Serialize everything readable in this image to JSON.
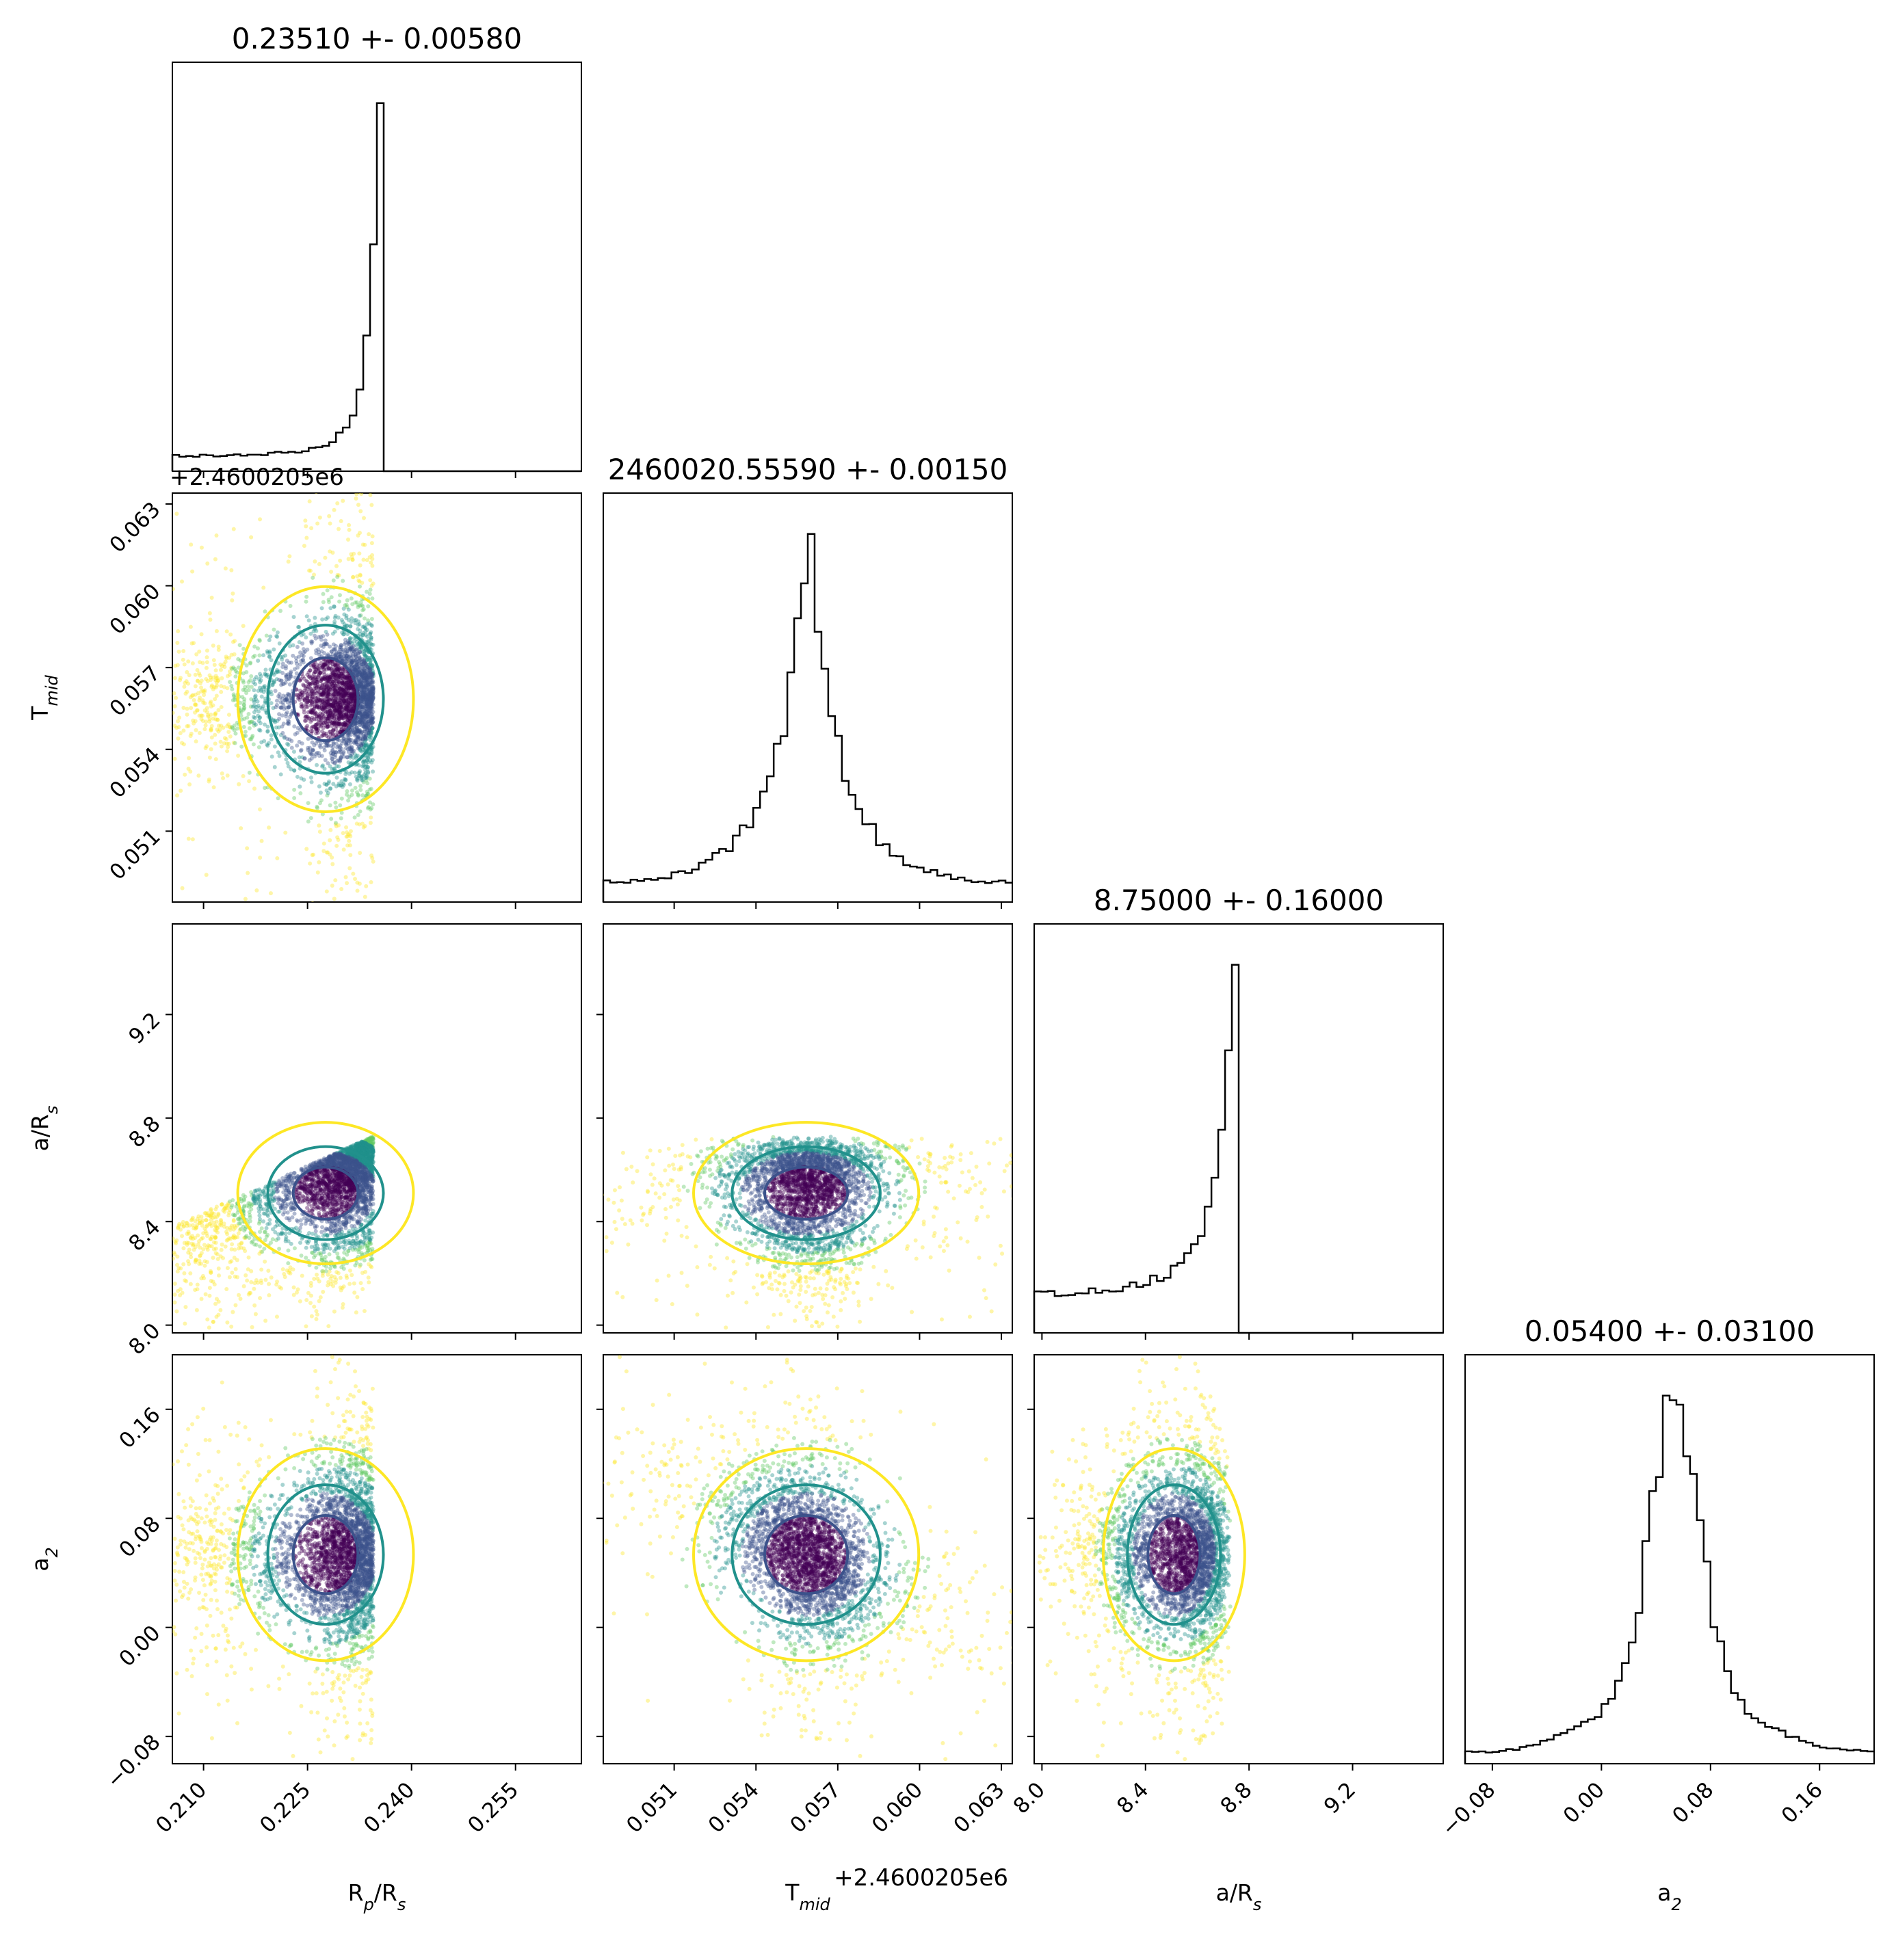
{
  "chart_data": {
    "type": "corner",
    "parameters": [
      {
        "key": "rp",
        "label": "R",
        "sub": "p",
        "label2": "/R",
        "sub2": "s",
        "title": "0.23510 +- 0.00580",
        "range": [
          0.2055,
          0.2645
        ],
        "ticks": [
          "0.210",
          "0.225",
          "0.240",
          "0.255"
        ],
        "tick_values": [
          0.21,
          0.225,
          0.24,
          0.255
        ]
      },
      {
        "key": "tmid",
        "label": "T",
        "sub": "mid",
        "label2": "",
        "sub2": "",
        "title": "2460020.55590 +- 0.00150",
        "range": [
          0.0484,
          0.0634
        ],
        "offset_text": "+2.4600205e6",
        "ticks": [
          "0.051",
          "0.054",
          "0.057",
          "0.060",
          "0.063"
        ],
        "tick_values": [
          0.051,
          0.054,
          0.057,
          0.06,
          0.063
        ]
      },
      {
        "key": "ars",
        "label": "a/R",
        "sub": "s",
        "label2": "",
        "sub2": "",
        "title": "8.75000 +- 0.16000",
        "range": [
          7.97,
          9.55
        ],
        "ticks": [
          "8.0",
          "8.4",
          "8.8",
          "9.2"
        ],
        "tick_values": [
          8.0,
          8.4,
          8.8,
          9.2
        ]
      },
      {
        "key": "a2",
        "label": "a",
        "sub": "2",
        "label2": "",
        "sub2": "",
        "title": "0.05400 +- 0.03100",
        "range": [
          -0.1,
          0.2
        ],
        "ticks": [
          "−0.08",
          "0.00",
          "0.08",
          "0.16"
        ],
        "tick_values": [
          -0.08,
          0.0,
          0.08,
          0.16
        ]
      }
    ],
    "histograms": {
      "rp": {
        "shape": "skewed-left-truncated",
        "peak": 0.234,
        "cutoff": 0.2355
      },
      "tmid": {
        "shape": "peaked",
        "peak": 0.0559
      },
      "ars": {
        "shape": "skewed-left-truncated",
        "peak": 8.73,
        "cutoff": 8.76
      },
      "a2": {
        "shape": "peaked",
        "peak": 0.054
      }
    },
    "contour_colors": {
      "inner": "#3b528b",
      "middle": "#21918c",
      "outer": "#fde725"
    },
    "point_colors": [
      "#440154",
      "#3b528b",
      "#21918c",
      "#5ec962",
      "#fde725"
    ]
  }
}
